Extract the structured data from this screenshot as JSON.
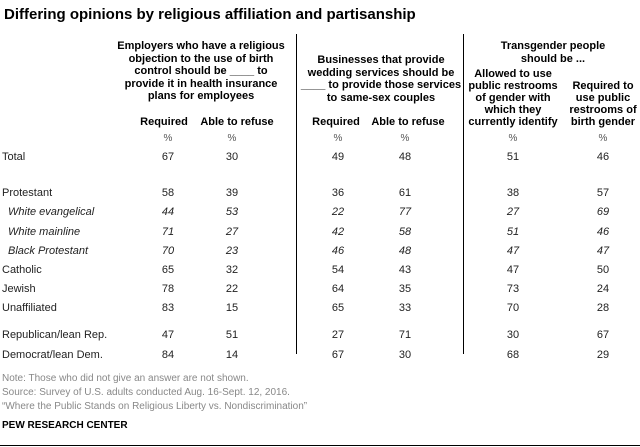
{
  "title": "Differing opinions by religious affiliation and partisanship",
  "chart_data": {
    "type": "table",
    "title": "Differing opinions by religious affiliation and partisanship",
    "groups": [
      {
        "label": "Employers who have a religious objection to the use of birth control should be ____ to provide it in health insurance plans for employees",
        "lines": [
          "Employers who have a religious",
          "objection to the use of birth",
          "control should be ____ to",
          "provide it in health insurance",
          "plans for employees"
        ]
      },
      {
        "label": "Businesses that provide wedding services should be ____ to provide those services to same-sex couples",
        "lines": [
          "Businesses that provide",
          "wedding services should be",
          "____ to provide those services",
          "to same-sex couples"
        ]
      },
      {
        "label": "Transgender people should be ...",
        "lines": [
          "Transgender people",
          "should be ..."
        ]
      }
    ],
    "columns": [
      {
        "lines": [
          "Required"
        ]
      },
      {
        "lines": [
          "Able to refuse"
        ]
      },
      {
        "lines": [
          "Required"
        ]
      },
      {
        "lines": [
          "Able to refuse"
        ]
      },
      {
        "lines": [
          "Allowed to use",
          "public restrooms",
          "of gender with",
          "which they",
          "currently identify"
        ]
      },
      {
        "lines": [
          "Required to",
          "use public",
          "restrooms of",
          "birth gender"
        ]
      }
    ],
    "unit": "%",
    "rows": [
      {
        "label": "Total",
        "italic": false,
        "values": [
          67,
          30,
          49,
          48,
          51,
          46
        ]
      },
      {
        "label": "Protestant",
        "italic": false,
        "values": [
          58,
          39,
          36,
          61,
          38,
          57
        ]
      },
      {
        "label": "White evangelical",
        "italic": true,
        "values": [
          44,
          53,
          22,
          77,
          27,
          69
        ]
      },
      {
        "label": "White mainline",
        "italic": true,
        "values": [
          71,
          27,
          42,
          58,
          51,
          46
        ]
      },
      {
        "label": "Black Protestant",
        "italic": true,
        "values": [
          70,
          23,
          46,
          48,
          47,
          47
        ]
      },
      {
        "label": "Catholic",
        "italic": false,
        "values": [
          65,
          32,
          54,
          43,
          47,
          50
        ]
      },
      {
        "label": "Jewish",
        "italic": false,
        "values": [
          78,
          22,
          64,
          35,
          73,
          24
        ]
      },
      {
        "label": "Unaffiliated",
        "italic": false,
        "values": [
          83,
          15,
          65,
          33,
          70,
          28
        ]
      },
      {
        "label": "Republican/lean Rep.",
        "italic": false,
        "values": [
          47,
          51,
          27,
          71,
          30,
          67
        ]
      },
      {
        "label": "Democrat/lean Dem.",
        "italic": false,
        "values": [
          84,
          14,
          67,
          30,
          68,
          29
        ]
      }
    ]
  },
  "notes": [
    "Note: Those who did not give an answer are not shown.",
    "Source: Survey of U.S. adults conducted Aug. 16-Sept. 12, 2016.",
    "“Where the Public Stands on Religious Liberty vs. Nondiscrimination”"
  ],
  "source_org": "PEW RESEARCH CENTER"
}
